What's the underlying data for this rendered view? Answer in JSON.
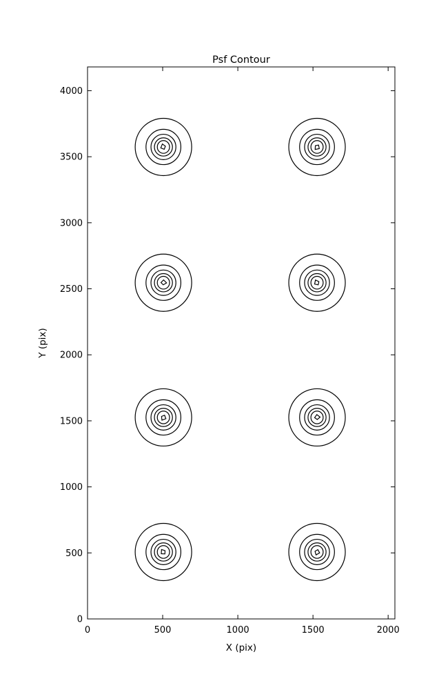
{
  "chart_data": {
    "type": "contour",
    "title": "Psf Contour",
    "xlabel": "X (pix)",
    "ylabel": "Y (pix)",
    "xlim": [
      0,
      2045
    ],
    "ylim": [
      0,
      4180
    ],
    "xticks": [
      0,
      500,
      1000,
      1500,
      2000
    ],
    "yticks": [
      0,
      500,
      1000,
      1500,
      2000,
      2500,
      3000,
      3500,
      4000
    ],
    "grid": false,
    "legend": false,
    "line_color": "#000000",
    "background_color": "#ffffff",
    "description": "Eight PSF spots shown as nested closed contour rings arranged in a 2x4 grid",
    "spot_centers": [
      {
        "x": 505,
        "y": 3574
      },
      {
        "x": 1527,
        "y": 3574
      },
      {
        "x": 505,
        "y": 2546
      },
      {
        "x": 1527,
        "y": 2546
      },
      {
        "x": 505,
        "y": 1526
      },
      {
        "x": 1527,
        "y": 1526
      },
      {
        "x": 505,
        "y": 507
      },
      {
        "x": 1527,
        "y": 507
      }
    ],
    "contour_radii_x": [
      188,
      116,
      83,
      60,
      41,
      20
    ],
    "contour_radii_y": [
      217,
      134,
      96,
      69,
      48,
      23
    ]
  }
}
